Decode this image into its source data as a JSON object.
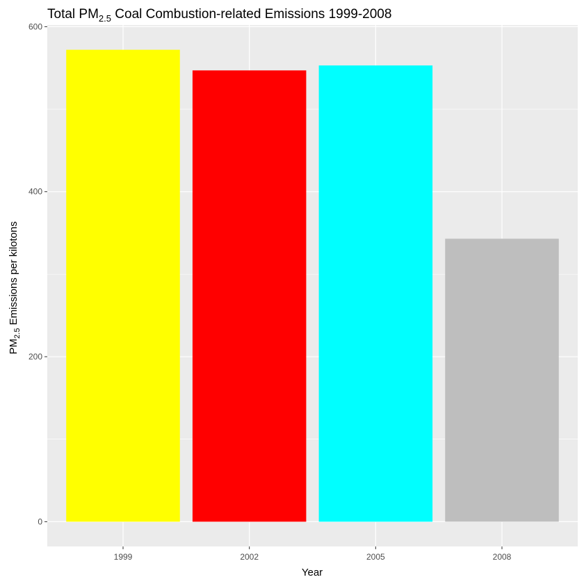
{
  "chart_data": {
    "type": "bar",
    "title": {
      "prefix": "Total PM",
      "subscript": "2.5",
      "suffix": " Coal Combustion-related Emissions 1999-2008"
    },
    "xlabel": "Year",
    "ylabel": {
      "prefix": "PM",
      "subscript": "2.5",
      "suffix": " Emissions per kilotons"
    },
    "categories": [
      "1999",
      "2002",
      "2005",
      "2008"
    ],
    "values": [
      572,
      547,
      553,
      343
    ],
    "colors": [
      "#FFFF00",
      "#FF0000",
      "#00FFFF",
      "#BEBEBE"
    ],
    "ylim": [
      -30,
      602
    ],
    "y_ticks": [
      0,
      200,
      400,
      600
    ],
    "y_tick_labels": [
      "0",
      "200",
      "400",
      "600"
    ],
    "y_minor_ticks": [
      100,
      300,
      500
    ],
    "grid": true,
    "panel_background": "#EBEBEB",
    "grid_color": "#FFFFFF"
  }
}
